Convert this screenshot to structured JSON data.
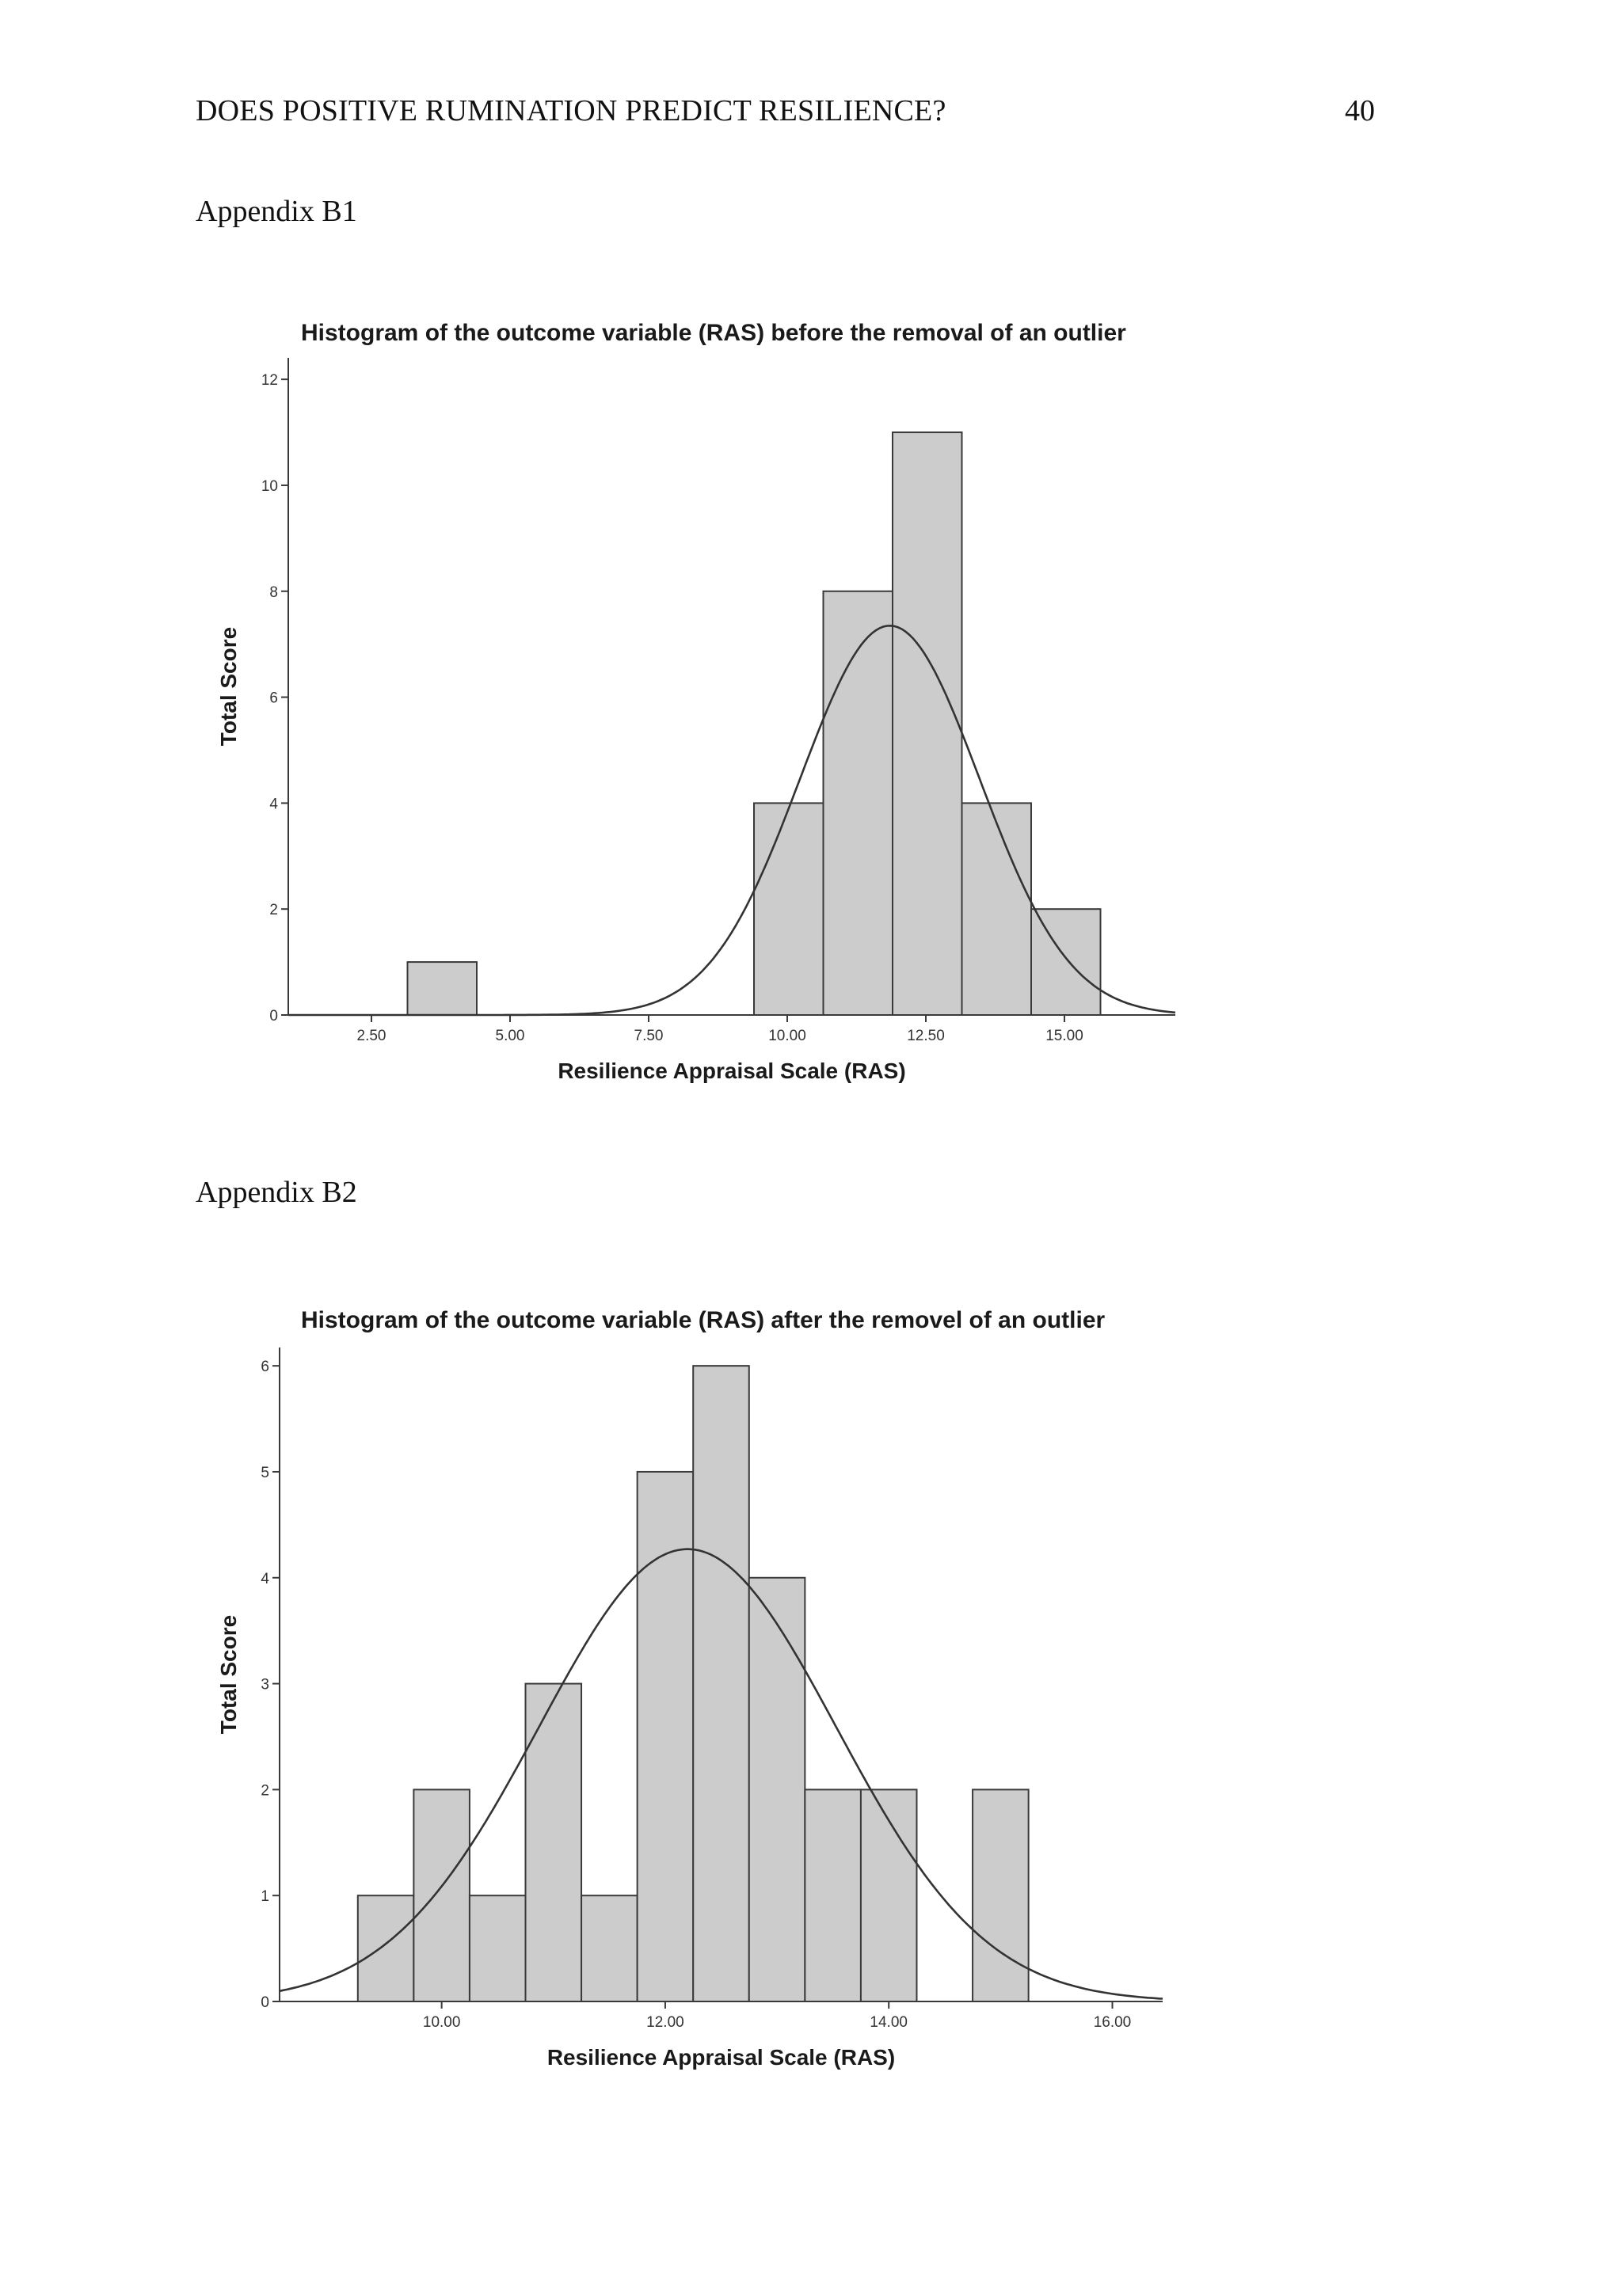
{
  "header": {
    "running_head": "DOES POSITIVE RUMINATION PREDICT RESILIENCE?",
    "page_number": "40"
  },
  "appendices": [
    {
      "label": "Appendix  B1"
    },
    {
      "label": "Appendix  B2"
    }
  ],
  "chart_data": [
    {
      "type": "bar",
      "title": "Histogram of the outcome variable (RAS) before the removal of an outlier",
      "xlabel": "Resilience Appraisal Scale (RAS)",
      "ylabel": "Total Score",
      "xlim": [
        1.0,
        17.0
      ],
      "ylim": [
        0,
        12.6
      ],
      "x_ticks": [
        "2.50",
        "5.00",
        "7.50",
        "10.00",
        "12.50",
        "15.00"
      ],
      "x_tick_values": [
        2.5,
        5.0,
        7.5,
        10.0,
        12.5,
        15.0
      ],
      "y_ticks": [
        "0",
        "2",
        "4",
        "6",
        "8",
        "10",
        "12"
      ],
      "y_tick_values": [
        0,
        2,
        4,
        6,
        8,
        10,
        12
      ],
      "bins": [
        {
          "x0": 3.15,
          "x1": 4.4,
          "count": 1
        },
        {
          "x0": 9.4,
          "x1": 10.65,
          "count": 4
        },
        {
          "x0": 10.65,
          "x1": 11.9,
          "count": 8
        },
        {
          "x0": 11.9,
          "x1": 13.15,
          "count": 11
        },
        {
          "x0": 13.15,
          "x1": 14.4,
          "count": 4
        },
        {
          "x0": 14.4,
          "x1": 15.65,
          "count": 2
        }
      ],
      "normal_curve": {
        "mean": 11.85,
        "sd": 1.62,
        "peak": 7.35
      },
      "grid": false
    },
    {
      "type": "bar",
      "title": "Histogram of the outcome variable (RAS) after the removel of an outlier",
      "xlabel": "Resilience Appraisal Scale (RAS)",
      "ylabel": "Total Score",
      "xlim": [
        8.55,
        16.45
      ],
      "ylim": [
        0,
        6.3
      ],
      "x_ticks": [
        "10.00",
        "12.00",
        "14.00",
        "16.00"
      ],
      "x_tick_values": [
        10.0,
        12.0,
        14.0,
        16.0
      ],
      "y_ticks": [
        "0",
        "1",
        "2",
        "3",
        "4",
        "5",
        "6"
      ],
      "y_tick_values": [
        0,
        1,
        2,
        3,
        4,
        5,
        6
      ],
      "bins": [
        {
          "x0": 9.25,
          "x1": 9.75,
          "count": 1
        },
        {
          "x0": 9.75,
          "x1": 10.25,
          "count": 2
        },
        {
          "x0": 10.25,
          "x1": 10.75,
          "count": 1
        },
        {
          "x0": 10.75,
          "x1": 11.25,
          "count": 3
        },
        {
          "x0": 11.25,
          "x1": 11.75,
          "count": 1
        },
        {
          "x0": 11.75,
          "x1": 12.25,
          "count": 5
        },
        {
          "x0": 12.25,
          "x1": 12.75,
          "count": 6
        },
        {
          "x0": 12.75,
          "x1": 13.25,
          "count": 4
        },
        {
          "x0": 13.25,
          "x1": 13.75,
          "count": 2
        },
        {
          "x0": 13.75,
          "x1": 14.25,
          "count": 2
        },
        {
          "x0": 14.75,
          "x1": 15.25,
          "count": 2
        }
      ],
      "normal_curve": {
        "mean": 12.2,
        "sd": 1.33,
        "peak": 4.27
      },
      "grid": false
    }
  ]
}
